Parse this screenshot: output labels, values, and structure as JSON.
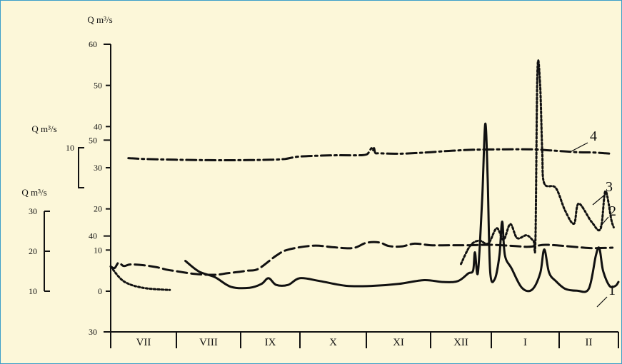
{
  "chart_data": {
    "type": "line",
    "months": [
      "VII",
      "VIII",
      "IX",
      "X",
      "XI",
      "XII",
      "I",
      "II"
    ],
    "axes": [
      {
        "id": "a1",
        "label": "Q m³/s",
        "ticks": [
          30,
          40,
          50,
          60
        ],
        "curve": "1"
      },
      {
        "id": "a2",
        "label": "Q m³/s",
        "ticks": [
          0,
          10,
          20,
          30,
          40,
          50,
          60
        ],
        "curve": "3"
      },
      {
        "id": "a3",
        "label": "Q m³/s",
        "ticks": [
          10,
          20,
          30
        ],
        "curve": "2"
      },
      {
        "id": "a4",
        "label": "Q m³/s",
        "ticks": [
          10
        ],
        "curve": "4"
      }
    ],
    "series": [
      {
        "name": "1",
        "axis": "a1",
        "style": "solid",
        "points": [
          [
            1.14,
            37.4
          ],
          [
            1.35,
            36.3
          ],
          [
            1.6,
            35.7
          ],
          [
            1.85,
            34.7
          ],
          [
            2.15,
            34.6
          ],
          [
            2.35,
            35.0
          ],
          [
            2.47,
            35.6
          ],
          [
            2.6,
            34.9
          ],
          [
            2.8,
            34.9
          ],
          [
            3.0,
            35.6
          ],
          [
            3.3,
            35.3
          ],
          [
            3.7,
            34.8
          ],
          [
            4.1,
            34.8
          ],
          [
            4.5,
            35.0
          ],
          [
            4.9,
            35.4
          ],
          [
            5.2,
            35.2
          ],
          [
            5.45,
            35.3
          ],
          [
            5.62,
            36.1
          ],
          [
            5.7,
            36.4
          ],
          [
            5.73,
            38.3
          ],
          [
            5.78,
            36.2
          ],
          [
            5.85,
            44.0
          ],
          [
            5.9,
            51.7
          ],
          [
            5.94,
            46.0
          ],
          [
            5.98,
            36.4
          ],
          [
            6.05,
            35.5
          ],
          [
            6.12,
            38.0
          ],
          [
            6.16,
            41.5
          ],
          [
            6.2,
            38.0
          ],
          [
            6.3,
            36.6
          ],
          [
            6.45,
            34.6
          ],
          [
            6.6,
            34.4
          ],
          [
            6.72,
            36.1
          ],
          [
            6.78,
            38.6
          ],
          [
            6.85,
            36.2
          ],
          [
            6.95,
            35.3
          ],
          [
            7.1,
            34.5
          ],
          [
            7.3,
            34.3
          ],
          [
            7.5,
            34.5
          ],
          [
            7.62,
            38.0
          ],
          [
            7.68,
            38.7
          ],
          [
            7.74,
            36.4
          ],
          [
            7.85,
            34.8
          ],
          [
            7.95,
            34.8
          ],
          [
            8.0,
            35.2
          ]
        ]
      },
      {
        "name": "2",
        "axis": "a3",
        "style": "dashed",
        "points": [
          [
            0,
            16.2
          ],
          [
            0.06,
            15.8
          ],
          [
            0.12,
            17.1
          ],
          [
            0.2,
            16.3
          ],
          [
            0.3,
            16.7
          ],
          [
            0.5,
            16.5
          ],
          [
            0.7,
            16.0
          ],
          [
            0.85,
            15.4
          ],
          [
            1.0,
            15.0
          ],
          [
            1.3,
            14.3
          ],
          [
            1.6,
            14.1
          ],
          [
            1.8,
            14.5
          ],
          [
            2.1,
            15.1
          ],
          [
            2.3,
            15.6
          ],
          [
            2.6,
            18.9
          ],
          [
            2.8,
            20.4
          ],
          [
            3.2,
            21.4
          ],
          [
            3.5,
            21.0
          ],
          [
            3.8,
            20.8
          ],
          [
            4.0,
            22.1
          ],
          [
            4.2,
            22.2
          ],
          [
            4.35,
            21.3
          ],
          [
            4.55,
            21.2
          ],
          [
            4.75,
            21.9
          ],
          [
            5.0,
            21.5
          ],
          [
            5.3,
            21.5
          ],
          [
            5.6,
            21.5
          ],
          [
            6.0,
            21.6
          ],
          [
            6.35,
            21.3
          ],
          [
            6.55,
            21.1
          ],
          [
            6.8,
            21.6
          ],
          [
            7.1,
            21.3
          ],
          [
            7.5,
            20.8
          ],
          [
            7.7,
            20.8
          ],
          [
            7.9,
            20.9
          ]
        ]
      },
      {
        "name": "3",
        "axis": "a2",
        "style": "dotted",
        "points": [
          [
            0,
            6.0
          ],
          [
            0.2,
            2.4
          ],
          [
            0.5,
            0.8
          ],
          [
            0.9,
            0.3
          ],
          [
            5.5,
            6.6
          ],
          [
            5.65,
            11.0
          ],
          [
            5.8,
            12.3
          ],
          [
            5.95,
            11.6
          ],
          [
            6.08,
            15.3
          ],
          [
            6.18,
            12.5
          ],
          [
            6.28,
            16.3
          ],
          [
            6.38,
            12.9
          ],
          [
            6.52,
            13.6
          ],
          [
            6.62,
            12.3
          ],
          [
            6.65,
            12.5
          ],
          [
            6.68,
            53.5
          ],
          [
            6.72,
            49.9
          ],
          [
            6.75,
            34.0
          ],
          [
            6.78,
            26.2
          ],
          [
            6.95,
            25.1
          ],
          [
            7.1,
            19.6
          ],
          [
            7.25,
            16.4
          ],
          [
            7.33,
            21.3
          ],
          [
            7.55,
            16.8
          ],
          [
            7.7,
            15.2
          ],
          [
            7.78,
            24.3
          ],
          [
            7.88,
            17.4
          ],
          [
            7.92,
            15.5
          ]
        ]
      },
      {
        "name": "4",
        "axis": "a4",
        "style": "dashdot",
        "points": [
          [
            0.27,
            7.4
          ],
          [
            0.5,
            7.2
          ],
          [
            1.0,
            7.0
          ],
          [
            1.5,
            6.9
          ],
          [
            2.0,
            6.9
          ],
          [
            2.5,
            7.0
          ],
          [
            2.75,
            7.2
          ],
          [
            3.0,
            7.8
          ],
          [
            3.5,
            8.1
          ],
          [
            3.85,
            8.1
          ],
          [
            4.0,
            8.3
          ],
          [
            4.05,
            9.2
          ],
          [
            4.08,
            9.9
          ],
          [
            4.1,
            9.2
          ],
          [
            4.12,
            9.9
          ],
          [
            4.14,
            8.7
          ],
          [
            4.2,
            8.6
          ],
          [
            4.5,
            8.5
          ],
          [
            4.8,
            8.7
          ],
          [
            5.0,
            8.9
          ],
          [
            5.3,
            9.2
          ],
          [
            5.7,
            9.5
          ],
          [
            6.2,
            9.6
          ],
          [
            6.6,
            9.6
          ],
          [
            6.9,
            9.3
          ],
          [
            7.3,
            8.9
          ],
          [
            7.6,
            8.8
          ],
          [
            7.78,
            8.6
          ],
          [
            7.9,
            8.5
          ]
        ]
      }
    ],
    "curve_labels": [
      "1",
      "2",
      "3",
      "4"
    ]
  }
}
